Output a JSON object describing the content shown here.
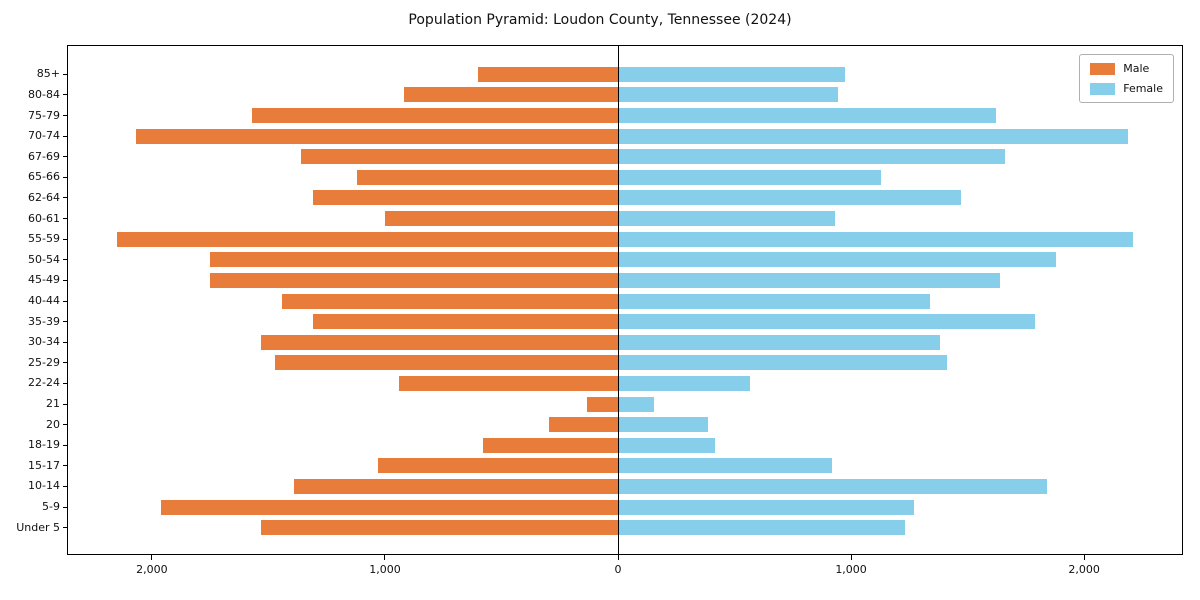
{
  "colors": {
    "male": "#e87d3b",
    "female": "#87ceeb",
    "axis": "#000000",
    "background": "#ffffff"
  },
  "chart_data": {
    "type": "bar",
    "subtype": "population-pyramid",
    "orientation": "horizontal",
    "title": "Population Pyramid: Loudon County, Tennessee (2024)",
    "categories_top_to_bottom": [
      "85+",
      "80-84",
      "75-79",
      "70-74",
      "67-69",
      "65-66",
      "62-64",
      "60-61",
      "55-59",
      "50-54",
      "45-49",
      "40-44",
      "35-39",
      "30-34",
      "25-29",
      "22-24",
      "21",
      "20",
      "18-19",
      "15-17",
      "10-14",
      "5-9",
      "Under 5"
    ],
    "series": [
      {
        "name": "Male",
        "side": "left",
        "values": [
          600,
          920,
          1570,
          2070,
          1360,
          1120,
          1310,
          1000,
          2150,
          1750,
          1750,
          1440,
          1310,
          1530,
          1470,
          940,
          135,
          295,
          580,
          1030,
          1390,
          1960,
          1530
        ]
      },
      {
        "name": "Female",
        "side": "right",
        "values": [
          975,
          945,
          1620,
          2190,
          1660,
          1130,
          1470,
          930,
          2210,
          1880,
          1640,
          1340,
          1790,
          1380,
          1410,
          565,
          155,
          385,
          415,
          920,
          1840,
          1270,
          1230
        ]
      }
    ],
    "xlim": [
      -2360,
      2420
    ],
    "xticks": [
      -2000,
      -1000,
      0,
      1000,
      2000
    ],
    "xtick_labels": [
      "2,000",
      "1,000",
      "0",
      "1,000",
      "2,000"
    ],
    "legend_position": "upper right",
    "grid": false,
    "zero_axis_line": true
  }
}
